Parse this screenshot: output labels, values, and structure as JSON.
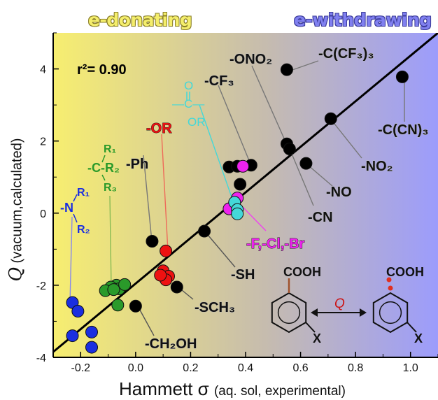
{
  "header": {
    "left_label": "e-donating",
    "right_label": "e-withdrawing",
    "left_color": "#f7ee70",
    "right_color": "#9c9cfc"
  },
  "chart_data": {
    "type": "scatter",
    "xlabel_main": "Hammett σ",
    "xlabel_sub": "(aq. sol, experimental)",
    "ylabel_main": "Q",
    "ylabel_sub": "(vacuum,calculated)",
    "xlim": [
      -0.3,
      1.1
    ],
    "ylim": [
      -4,
      5
    ],
    "x_ticks": [
      -0.2,
      0.0,
      0.2,
      0.4,
      0.6,
      0.8,
      1.0
    ],
    "x_tick_labels": [
      "-0.2",
      "0.0",
      "0.2",
      "0.4",
      "0.6",
      "0.8",
      "1.0"
    ],
    "y_ticks": [
      -4,
      -2,
      0,
      2,
      4
    ],
    "y_tick_labels": [
      "-4",
      "-2",
      "0",
      "2",
      "4"
    ],
    "r2_label": "r²= 0.90",
    "fit_line": {
      "x": [
        -0.3,
        1.1
      ],
      "y": [
        -3.85,
        5.0
      ]
    },
    "colors": {
      "black": "#000000",
      "blue": "#1a2ee0",
      "green": "#2a9a2a",
      "red": "#ee1111",
      "magenta": "#ee22ee",
      "cyan": "#44d8d8"
    },
    "series": [
      {
        "color": "black",
        "x": [
          0.55,
          0.97,
          0.71,
          0.55,
          0.56,
          0.62,
          0.34,
          0.38,
          0.42,
          0.37,
          0.25,
          0.06,
          0.15,
          0.0
        ],
        "y": [
          3.98,
          3.78,
          2.62,
          1.92,
          1.78,
          1.38,
          1.28,
          0.8,
          1.33,
          1.3,
          -0.5,
          -0.78,
          -2.05,
          -2.58
        ]
      },
      {
        "color": "blue",
        "x": [
          -0.23,
          -0.21,
          -0.23,
          -0.16,
          -0.16
        ],
        "y": [
          -2.48,
          -2.72,
          -3.4,
          -3.3,
          -3.72
        ]
      },
      {
        "color": "green",
        "x": [
          -0.07,
          -0.09,
          -0.06,
          -0.11,
          -0.08,
          -0.04,
          -0.065
        ],
        "y": [
          -2.0,
          -2.05,
          -2.1,
          -2.15,
          -2.12,
          -1.98,
          -2.55
        ]
      },
      {
        "color": "red",
        "x": [
          0.11,
          0.1,
          0.12,
          0.11,
          0.09
        ],
        "y": [
          -1.05,
          -1.6,
          -1.75,
          -1.85,
          -1.72
        ]
      },
      {
        "color": "magenta",
        "x": [
          0.37,
          0.39,
          0.34
        ],
        "y": [
          0.42,
          1.3,
          0.12
        ]
      },
      {
        "color": "cyan",
        "x": [
          0.36,
          0.37,
          0.37
        ],
        "y": [
          0.3,
          0.1,
          -0.02
        ]
      }
    ],
    "annotations": [
      {
        "text": "-C(CF₃)₃",
        "color": "black"
      },
      {
        "text": "-ONO₂",
        "color": "black"
      },
      {
        "text": "-CF₃",
        "color": "black"
      },
      {
        "text": "-C(CN)₃",
        "color": "black"
      },
      {
        "text": "-NO₂",
        "color": "black"
      },
      {
        "text": "-NO",
        "color": "black"
      },
      {
        "text": "-CN",
        "color": "black"
      },
      {
        "text": "-SH",
        "color": "black"
      },
      {
        "text": "-SCH₃",
        "color": "black"
      },
      {
        "text": "-CH₂OH",
        "color": "black"
      },
      {
        "text": "-Ph",
        "color": "black"
      },
      {
        "text": "-OR",
        "color": "red"
      },
      {
        "text": "-F,-Cl,-Br",
        "color": "magenta"
      }
    ],
    "ester_group": {
      "lines": [
        "O",
        "—C—",
        "OR"
      ],
      "color": "cyan"
    },
    "alkyl_group": {
      "lines": [
        "R₁",
        "-C-R₂",
        "R₃"
      ],
      "color": "green"
    },
    "amine_group": {
      "lines": [
        "R₁",
        "-N",
        "R₂"
      ],
      "color": "blue"
    },
    "scheme": {
      "left_group": "COOH",
      "right_group": "COOH",
      "arrow_label": "Q",
      "substituent": "X"
    }
  }
}
